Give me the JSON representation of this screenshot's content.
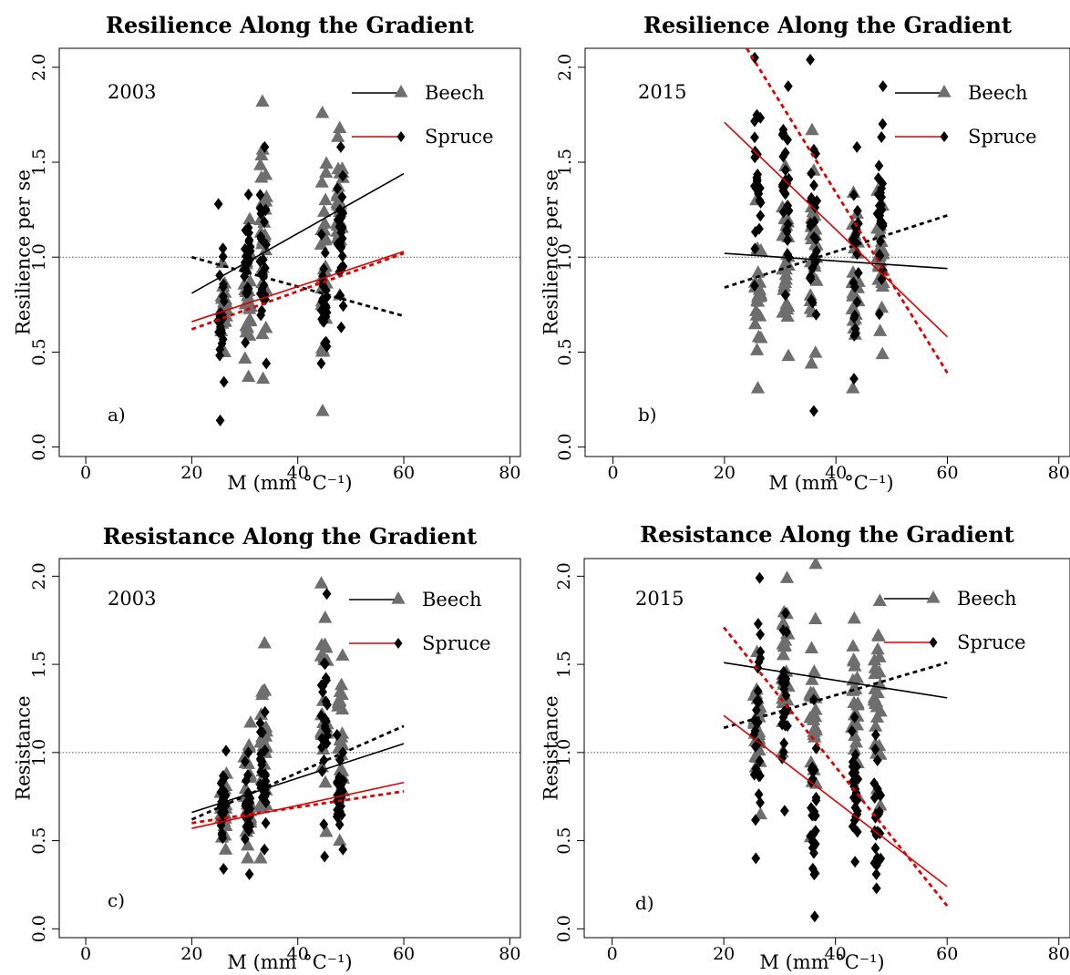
{
  "figure": {
    "panels": [
      {
        "panel_label": "a)",
        "year_label": "2003",
        "legend": [
          "Beech",
          "Spruce"
        ]
      },
      {
        "panel_label": "b)",
        "year_label": "2015",
        "legend": [
          "Beech",
          "Spruce"
        ]
      },
      {
        "panel_label": "c)",
        "year_label": "2003",
        "legend": [
          "Beech",
          "Spruce"
        ]
      },
      {
        "panel_label": "d)",
        "year_label": "2015",
        "legend": [
          "Beech",
          "Spruce"
        ]
      }
    ]
  },
  "chart_data": [
    {
      "type": "scatter",
      "title": "Resilience Along the Gradient",
      "xlabel": "M (mm °C⁻¹)",
      "ylabel": "Resilience per se",
      "xlim": [
        -5,
        82
      ],
      "ylim": [
        -0.05,
        2.1
      ],
      "xticks": [
        0,
        20,
        40,
        60,
        80
      ],
      "yticks": [
        0.0,
        0.5,
        1.0,
        1.5,
        2.0
      ],
      "reference_line": 1.0,
      "series": [
        {
          "name": "Beech",
          "color": "#6e6e6e",
          "marker": "triangle",
          "clusters": [
            {
              "x": 26,
              "ymin": 0.5,
              "ymax": 0.97
            },
            {
              "x": 30.5,
              "ymin": 0.37,
              "ymax": 1.2
            },
            {
              "x": 33.5,
              "ymin": 0.36,
              "ymax": 1.82
            },
            {
              "x": 45,
              "ymin": 0.19,
              "ymax": 1.76
            },
            {
              "x": 48,
              "ymin": 0.8,
              "ymax": 1.68
            }
          ],
          "fit_solid": [
            [
              20,
              0.81
            ],
            [
              60,
              1.44
            ]
          ],
          "fit_dashed": [
            [
              20,
              1.0
            ],
            [
              60,
              0.69
            ]
          ]
        },
        {
          "name": "Spruce",
          "color": "#000000",
          "marker": "diamond",
          "clusters": [
            {
              "x": 25.5,
              "ymin": 0.14,
              "ymax": 1.28
            },
            {
              "x": 30.5,
              "ymin": 0.55,
              "ymax": 1.33
            },
            {
              "x": 33.5,
              "ymin": 0.44,
              "ymax": 1.58
            },
            {
              "x": 45,
              "ymin": 0.44,
              "ymax": 1.12
            },
            {
              "x": 48,
              "ymin": 0.63,
              "ymax": 1.58
            }
          ],
          "fit_solid": [
            [
              20,
              0.66
            ],
            [
              60,
              1.03
            ]
          ],
          "fit_dashed": [
            [
              20,
              0.62
            ],
            [
              60,
              1.02
            ]
          ]
        }
      ]
    },
    {
      "type": "scatter",
      "title": "Resilience Along the Gradient",
      "xlabel": "M (mm °C⁻¹)",
      "ylabel": "Resilience per se",
      "xlim": [
        -5,
        82
      ],
      "ylim": [
        -0.05,
        2.1
      ],
      "xticks": [
        0,
        20,
        40,
        60,
        80
      ],
      "yticks": [
        0.0,
        0.5,
        1.0,
        1.5,
        2.0
      ],
      "reference_line": 1.0,
      "series": [
        {
          "name": "Beech",
          "color": "#6e6e6e",
          "marker": "triangle",
          "clusters": [
            {
              "x": 26,
              "ymin": 0.31,
              "ymax": 1.3
            },
            {
              "x": 31,
              "ymin": 0.48,
              "ymax": 1.48
            },
            {
              "x": 36,
              "ymin": 0.44,
              "ymax": 1.67
            },
            {
              "x": 43.5,
              "ymin": 0.31,
              "ymax": 1.34
            },
            {
              "x": 48,
              "ymin": 0.49,
              "ymax": 1.35
            }
          ],
          "fit_solid": [
            [
              20,
              1.02
            ],
            [
              60,
              0.94
            ]
          ],
          "fit_dashed": [
            [
              20,
              0.84
            ],
            [
              60,
              1.22
            ]
          ]
        },
        {
          "name": "Spruce",
          "color": "#000000",
          "marker": "diamond",
          "clusters": [
            {
              "x": 26,
              "ymin": 0.85,
              "ymax": 2.05
            },
            {
              "x": 31,
              "ymin": 0.8,
              "ymax": 1.9
            },
            {
              "x": 36,
              "ymin": 0.19,
              "ymax": 2.04
            },
            {
              "x": 43.5,
              "ymin": 0.36,
              "ymax": 1.58
            },
            {
              "x": 48,
              "ymin": 0.7,
              "ymax": 1.9
            }
          ],
          "fit_solid": [
            [
              20,
              1.71
            ],
            [
              60,
              0.58
            ]
          ],
          "fit_dashed": [
            [
              24,
              2.1
            ],
            [
              60,
              0.39
            ]
          ]
        }
      ]
    },
    {
      "type": "scatter",
      "title": "Resistance Along the Gradient",
      "xlabel": "M (mm °C⁻¹)",
      "ylabel": "Resistance",
      "xlim": [
        -5,
        82
      ],
      "ylim": [
        -0.05,
        2.1
      ],
      "xticks": [
        0,
        20,
        40,
        60,
        80
      ],
      "yticks": [
        0.0,
        0.5,
        1.0,
        1.5,
        2.0
      ],
      "reference_line": 1.0,
      "series": [
        {
          "name": "Beech",
          "color": "#6e6e6e",
          "marker": "triangle",
          "clusters": [
            {
              "x": 26,
              "ymin": 0.45,
              "ymax": 0.88
            },
            {
              "x": 30.5,
              "ymin": 0.4,
              "ymax": 1.17
            },
            {
              "x": 33.5,
              "ymin": 0.4,
              "ymax": 1.62
            },
            {
              "x": 45,
              "ymin": 0.55,
              "ymax": 1.96
            },
            {
              "x": 48,
              "ymin": 0.5,
              "ymax": 1.55
            }
          ],
          "fit_solid": [
            [
              20,
              0.66
            ],
            [
              60,
              1.05
            ]
          ],
          "fit_dashed": [
            [
              20,
              0.62
            ],
            [
              60,
              1.15
            ]
          ]
        },
        {
          "name": "Spruce",
          "color": "#000000",
          "marker": "diamond",
          "clusters": [
            {
              "x": 26,
              "ymin": 0.34,
              "ymax": 1.01
            },
            {
              "x": 30.5,
              "ymin": 0.31,
              "ymax": 1.0
            },
            {
              "x": 33.5,
              "ymin": 0.45,
              "ymax": 1.23
            },
            {
              "x": 45,
              "ymin": 0.41,
              "ymax": 1.9
            },
            {
              "x": 48,
              "ymin": 0.45,
              "ymax": 1.1
            }
          ],
          "fit_solid": [
            [
              20,
              0.57
            ],
            [
              60,
              0.83
            ]
          ],
          "fit_dashed": [
            [
              20,
              0.6
            ],
            [
              60,
              0.78
            ]
          ]
        }
      ]
    },
    {
      "type": "scatter",
      "title": "Resistance Along the Gradient",
      "xlabel": "M (mm °C⁻¹)",
      "ylabel": "Resistance",
      "xlim": [
        -5,
        82
      ],
      "ylim": [
        -0.05,
        2.1
      ],
      "xticks": [
        0,
        20,
        40,
        60,
        80
      ],
      "yticks": [
        0.0,
        0.5,
        1.0,
        1.5,
        2.0
      ],
      "reference_line": 1.0,
      "series": [
        {
          "name": "Beech",
          "color": "#6e6e6e",
          "marker": "triangle",
          "clusters": [
            {
              "x": 26,
              "ymin": 0.65,
              "ymax": 1.57
            },
            {
              "x": 31,
              "ymin": 1.0,
              "ymax": 1.99
            },
            {
              "x": 36,
              "ymin": 0.52,
              "ymax": 2.07
            },
            {
              "x": 43.5,
              "ymin": 0.75,
              "ymax": 1.76
            },
            {
              "x": 47.5,
              "ymin": 0.7,
              "ymax": 1.86
            }
          ],
          "fit_solid": [
            [
              20,
              1.51
            ],
            [
              60,
              1.31
            ]
          ],
          "fit_dashed": [
            [
              20,
              1.14
            ],
            [
              60,
              1.51
            ]
          ]
        },
        {
          "name": "Spruce",
          "color": "#000000",
          "marker": "diamond",
          "clusters": [
            {
              "x": 26,
              "ymin": 0.4,
              "ymax": 1.99
            },
            {
              "x": 31,
              "ymin": 0.67,
              "ymax": 1.79
            },
            {
              "x": 36,
              "ymin": 0.07,
              "ymax": 1.3
            },
            {
              "x": 43.5,
              "ymin": 0.38,
              "ymax": 1.2
            },
            {
              "x": 47.5,
              "ymin": 0.23,
              "ymax": 1.1
            }
          ],
          "fit_solid": [
            [
              20,
              1.21
            ],
            [
              60,
              0.24
            ]
          ],
          "fit_dashed": [
            [
              20,
              1.71
            ],
            [
              60,
              0.13
            ]
          ]
        }
      ]
    }
  ]
}
